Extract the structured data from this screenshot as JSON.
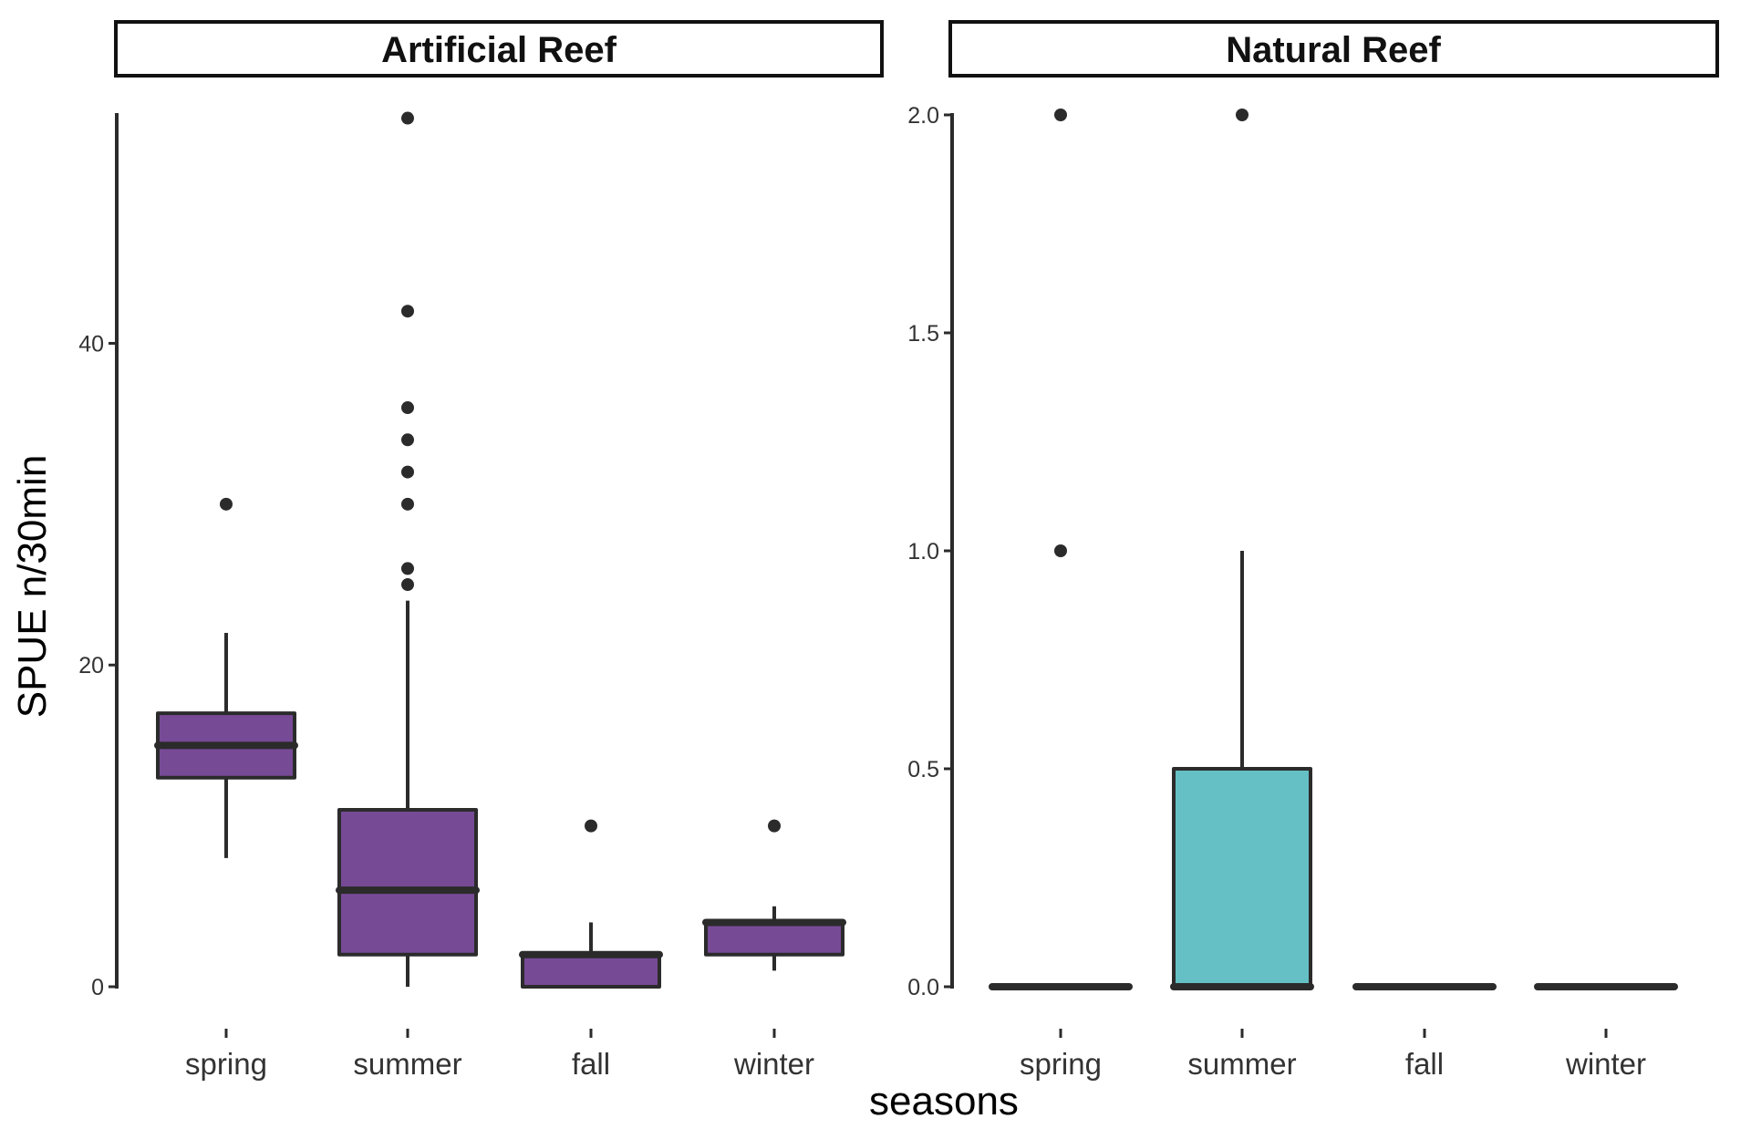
{
  "chart_data": {
    "type": "boxplot",
    "xlabel": "seasons",
    "ylabel": "SPUE n/30min",
    "categories": [
      "spring",
      "summer",
      "fall",
      "winter"
    ],
    "grid": false,
    "legend": "none",
    "panels": [
      {
        "title": "Artificial Reef",
        "fill_color": "#774a96",
        "ylim": [
          0,
          54.2
        ],
        "yticks": [
          0,
          20,
          40
        ],
        "ytick_labels": [
          "0",
          "20",
          "40"
        ],
        "boxes": [
          {
            "category": "spring",
            "whisker_low": 8,
            "q1": 13,
            "median": 15,
            "q3": 17,
            "whisker_high": 22,
            "outliers": [
              30
            ]
          },
          {
            "category": "summer",
            "whisker_low": 0,
            "q1": 2,
            "median": 6,
            "q3": 11,
            "whisker_high": 24,
            "outliers": [
              25,
              26,
              30,
              32,
              34,
              36,
              42,
              54
            ]
          },
          {
            "category": "fall",
            "whisker_low": 0,
            "q1": 0,
            "median": 2,
            "q3": 2,
            "whisker_high": 4,
            "outliers": [
              10
            ]
          },
          {
            "category": "winter",
            "whisker_low": 1,
            "q1": 2,
            "median": 4,
            "q3": 4,
            "whisker_high": 5,
            "outliers": [
              10
            ]
          }
        ]
      },
      {
        "title": "Natural Reef",
        "fill_color": "#64c0c4",
        "ylim": [
          0,
          2.0
        ],
        "yticks": [
          0,
          0.5,
          1.0,
          1.5,
          2.0
        ],
        "ytick_labels": [
          "0.0",
          "0.5",
          "1.0",
          "1.5",
          "2.0"
        ],
        "boxes": [
          {
            "category": "spring",
            "whisker_low": 0,
            "q1": 0,
            "median": 0,
            "q3": 0,
            "whisker_high": 0,
            "outliers": [
              1,
              2
            ]
          },
          {
            "category": "summer",
            "whisker_low": 0,
            "q1": 0,
            "median": 0,
            "q3": 0.5,
            "whisker_high": 1.0,
            "outliers": [
              2
            ]
          },
          {
            "category": "fall",
            "whisker_low": 0,
            "q1": 0,
            "median": 0,
            "q3": 0,
            "whisker_high": 0,
            "outliers": []
          },
          {
            "category": "winter",
            "whisker_low": 0,
            "q1": 0,
            "median": 0,
            "q3": 0,
            "whisker_high": 0,
            "outliers": []
          }
        ]
      }
    ]
  },
  "colors": {
    "line": "#2b2b2b",
    "outlier": "#2b2b2b",
    "strip_border": "#111111"
  }
}
